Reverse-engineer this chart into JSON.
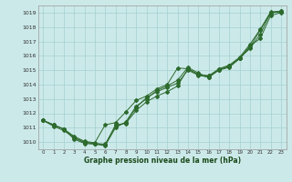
{
  "xlabel": "Graphe pression niveau de la mer (hPa)",
  "xlim": [
    -0.5,
    23.5
  ],
  "ylim": [
    1009.5,
    1019.5
  ],
  "yticks": [
    1010,
    1011,
    1012,
    1013,
    1014,
    1015,
    1016,
    1017,
    1018,
    1019
  ],
  "xticks": [
    0,
    1,
    2,
    3,
    4,
    5,
    6,
    7,
    8,
    9,
    10,
    11,
    12,
    13,
    14,
    15,
    16,
    17,
    18,
    19,
    20,
    21,
    22,
    23
  ],
  "bg_color": "#cce9e9",
  "grid_color": "#aad4d4",
  "line_color": "#2d6a2d",
  "series": [
    {
      "x": [
        0,
        1,
        2,
        3,
        4,
        5,
        6,
        7,
        8,
        9,
        10,
        11,
        12,
        13,
        14,
        15,
        16,
        17,
        18,
        19,
        20,
        21,
        22,
        23
      ],
      "y": [
        1011.5,
        1011.2,
        1010.9,
        1010.3,
        1010.0,
        1009.9,
        1009.8,
        1011.2,
        1011.3,
        1012.2,
        1012.8,
        1013.2,
        1013.5,
        1013.9,
        1015.1,
        1014.7,
        1014.6,
        1015.0,
        1015.3,
        1015.8,
        1016.6,
        1017.8,
        1019.0,
        1019.1
      ]
    },
    {
      "x": [
        0,
        1,
        2,
        3,
        4,
        5,
        6,
        7,
        8,
        9,
        10,
        11,
        12,
        13,
        14,
        15,
        16,
        17,
        18,
        19,
        20,
        21,
        22,
        23
      ],
      "y": [
        1011.5,
        1011.2,
        1010.9,
        1010.2,
        1009.9,
        1009.85,
        1009.75,
        1011.0,
        1011.4,
        1012.5,
        1013.0,
        1013.6,
        1013.9,
        1014.3,
        1015.2,
        1014.8,
        1014.5,
        1015.0,
        1015.2,
        1015.8,
        1016.7,
        1017.2,
        1018.8,
        1019.0
      ]
    },
    {
      "x": [
        0,
        1,
        2,
        3,
        4,
        5,
        6,
        7,
        8,
        9,
        10,
        11,
        12,
        13,
        14,
        15,
        16,
        17,
        18,
        19,
        20,
        21,
        22,
        23
      ],
      "y": [
        1011.5,
        1011.1,
        1010.8,
        1010.3,
        1009.95,
        1009.9,
        1009.85,
        1011.1,
        1011.35,
        1012.4,
        1013.1,
        1013.5,
        1013.8,
        1014.1,
        1015.0,
        1014.65,
        1014.5,
        1015.05,
        1015.25,
        1015.85,
        1016.5,
        1017.5,
        1019.0,
        1019.05
      ]
    },
    {
      "x": [
        0,
        1,
        2,
        3,
        4,
        5,
        6,
        7,
        8,
        9,
        10,
        11,
        12,
        13,
        14,
        15,
        16,
        17,
        18,
        19,
        20,
        21,
        22,
        23
      ],
      "y": [
        1011.5,
        1011.2,
        1010.9,
        1010.4,
        1010.05,
        1009.95,
        1011.2,
        1011.35,
        1012.1,
        1012.9,
        1013.2,
        1013.7,
        1014.0,
        1015.15,
        1015.1,
        1014.7,
        1014.6,
        1015.1,
        1015.35,
        1015.9,
        1016.8,
        1017.85,
        1019.05,
        1019.1
      ]
    }
  ]
}
